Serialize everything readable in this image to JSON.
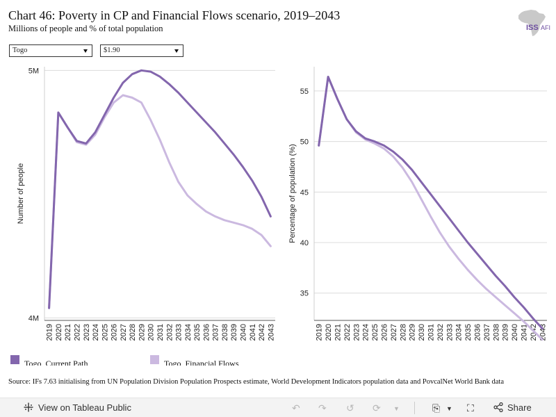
{
  "header": {
    "title": "Chart 46: Poverty in CP and Financial Flows scenario, 2019–2043",
    "subtitle": "Millions of people and % of total population"
  },
  "logo": {
    "text_iss": "ISS",
    "text_afi": "AFI"
  },
  "filters": {
    "country": "Togo",
    "poverty_line": "$1.90"
  },
  "legend": {
    "items": [
      {
        "label": "Togo, Current Path",
        "color": "#8366ad"
      },
      {
        "label": "Togo, Financial Flows",
        "color": "#cbb9e0"
      }
    ]
  },
  "source": "Source: IFs 7.63 initialising from UN Population Division Population Prospects estimate, World Development Indicators population data and PovcalNet World Bank data",
  "toolbar": {
    "view_label": "View on Tableau Public",
    "share_label": "Share"
  },
  "chart_data": [
    {
      "type": "line",
      "ylabel": "Number of people",
      "x": [
        2019,
        2020,
        2021,
        2022,
        2023,
        2024,
        2025,
        2026,
        2027,
        2028,
        2029,
        2030,
        2031,
        2032,
        2033,
        2034,
        2035,
        2036,
        2037,
        2038,
        2039,
        2040,
        2041,
        2042,
        2043
      ],
      "y_tick_labels": [
        "4M",
        "5M"
      ],
      "y_tick_values": [
        4.0,
        5.0
      ],
      "ylim": [
        3.99,
        5.015
      ],
      "series": [
        {
          "name": "Togo, Current Path",
          "color": "#8366ad",
          "values": [
            4.04,
            4.83,
            4.77,
            4.715,
            4.705,
            4.75,
            4.82,
            4.89,
            4.95,
            4.985,
            5.0,
            4.995,
            4.975,
            4.945,
            4.91,
            4.87,
            4.83,
            4.79,
            4.75,
            4.705,
            4.66,
            4.61,
            4.555,
            4.49,
            4.41
          ]
        },
        {
          "name": "Togo, Financial Flows",
          "color": "#cbb9e0",
          "values": [
            4.04,
            4.83,
            4.77,
            4.71,
            4.7,
            4.74,
            4.81,
            4.87,
            4.9,
            4.89,
            4.87,
            4.8,
            4.72,
            4.63,
            4.55,
            4.495,
            4.46,
            4.43,
            4.41,
            4.395,
            4.385,
            4.375,
            4.36,
            4.335,
            4.29
          ]
        }
      ]
    },
    {
      "type": "line",
      "ylabel": "Percentage of population (%)",
      "x": [
        2019,
        2020,
        2021,
        2022,
        2023,
        2024,
        2025,
        2026,
        2027,
        2028,
        2029,
        2030,
        2031,
        2032,
        2033,
        2034,
        2035,
        2036,
        2037,
        2038,
        2039,
        2040,
        2041,
        2042,
        2043
      ],
      "y_tick_labels": [
        "35",
        "40",
        "45",
        "50",
        "55"
      ],
      "y_tick_values": [
        35,
        40,
        45,
        50,
        55
      ],
      "ylim": [
        32.3,
        57.4
      ],
      "series": [
        {
          "name": "Togo, Current Path",
          "color": "#8366ad",
          "values": [
            49.6,
            56.4,
            54.2,
            52.2,
            51.0,
            50.3,
            50.0,
            49.6,
            49.0,
            48.2,
            47.2,
            46.0,
            44.8,
            43.6,
            42.4,
            41.2,
            40.0,
            38.9,
            37.8,
            36.7,
            35.7,
            34.6,
            33.6,
            32.5,
            31.5
          ]
        },
        {
          "name": "Togo, Financial Flows",
          "color": "#cbb9e0",
          "values": [
            49.6,
            56.4,
            54.2,
            52.2,
            50.9,
            50.2,
            49.8,
            49.3,
            48.5,
            47.4,
            46.0,
            44.3,
            42.6,
            41.0,
            39.6,
            38.4,
            37.3,
            36.3,
            35.4,
            34.6,
            33.8,
            33.0,
            32.2,
            31.3,
            30.4
          ]
        }
      ]
    }
  ]
}
